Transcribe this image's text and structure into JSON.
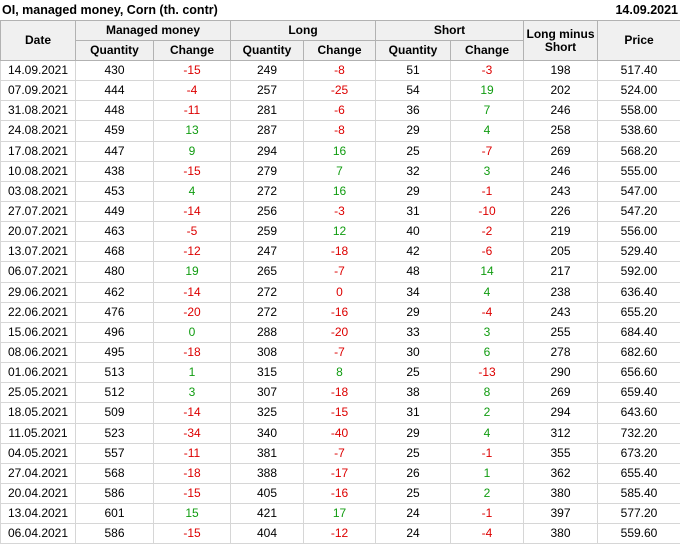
{
  "header": {
    "title": "OI, managed money, Corn (th. contr)",
    "report_date": "14.09.2021"
  },
  "colors": {
    "red": "#dd0000",
    "green": "#119c11",
    "header_bg": "#f0f0f0",
    "header_border": "#b2b2b2",
    "body_border": "#d6d6d6",
    "text": "#000000"
  },
  "table": {
    "group_headers": {
      "date": "Date",
      "managed_money": "Managed money",
      "long": "Long",
      "short": "Short",
      "long_minus_short": "Long minus Short",
      "price": "Price"
    },
    "sub_headers": {
      "quantity": "Quantity",
      "change": "Change"
    }
  },
  "chart_data": {
    "type": "table",
    "title": "OI, managed money, Corn (th. contr)",
    "as_of_date": "14.09.2021",
    "column_groups": [
      "Date",
      "Managed money",
      "Long",
      "Short",
      "Long minus Short",
      "Price"
    ],
    "columns": [
      "Date",
      "Managed money Quantity",
      "Managed money Change",
      "Long Quantity",
      "Long Change",
      "Short Quantity",
      "Short Change",
      "Long minus Short",
      "Price"
    ],
    "rows": [
      [
        "14.09.2021",
        "430",
        "-15",
        "249",
        "-8",
        "51",
        "-3",
        "198",
        "517.40"
      ],
      [
        "07.09.2021",
        "444",
        "-4",
        "257",
        "-25",
        "54",
        "19",
        "202",
        "524.00"
      ],
      [
        "31.08.2021",
        "448",
        "-11",
        "281",
        "-6",
        "36",
        "7",
        "246",
        "558.00"
      ],
      [
        "24.08.2021",
        "459",
        "13",
        "287",
        "-8",
        "29",
        "4",
        "258",
        "538.60"
      ],
      [
        "17.08.2021",
        "447",
        "9",
        "294",
        "16",
        "25",
        "-7",
        "269",
        "568.20"
      ],
      [
        "10.08.2021",
        "438",
        "-15",
        "279",
        "7",
        "32",
        "3",
        "246",
        "555.00"
      ],
      [
        "03.08.2021",
        "453",
        "4",
        "272",
        "16",
        "29",
        "-1",
        "243",
        "547.00"
      ],
      [
        "27.07.2021",
        "449",
        "-14",
        "256",
        "-3",
        "31",
        "-10",
        "226",
        "547.20"
      ],
      [
        "20.07.2021",
        "463",
        "-5",
        "259",
        "12",
        "40",
        "-2",
        "219",
        "556.00"
      ],
      [
        "13.07.2021",
        "468",
        "-12",
        "247",
        "-18",
        "42",
        "-6",
        "205",
        "529.40"
      ],
      [
        "06.07.2021",
        "480",
        "19",
        "265",
        "-7",
        "48",
        "14",
        "217",
        "592.00"
      ],
      [
        "29.06.2021",
        "462",
        "-14",
        "272",
        "0",
        "34",
        "4",
        "238",
        "636.40"
      ],
      [
        "22.06.2021",
        "476",
        "-20",
        "272",
        "-16",
        "29",
        "-4",
        "243",
        "655.20"
      ],
      [
        "15.06.2021",
        "496",
        "0",
        "288",
        "-20",
        "33",
        "3",
        "255",
        "684.40"
      ],
      [
        "08.06.2021",
        "495",
        "-18",
        "308",
        "-7",
        "30",
        "6",
        "278",
        "682.60"
      ],
      [
        "01.06.2021",
        "513",
        "1",
        "315",
        "8",
        "25",
        "-13",
        "290",
        "656.60"
      ],
      [
        "25.05.2021",
        "512",
        "3",
        "307",
        "-18",
        "38",
        "8",
        "269",
        "659.40"
      ],
      [
        "18.05.2021",
        "509",
        "-14",
        "325",
        "-15",
        "31",
        "2",
        "294",
        "643.60"
      ],
      [
        "11.05.2021",
        "523",
        "-34",
        "340",
        "-40",
        "29",
        "4",
        "312",
        "732.20"
      ],
      [
        "04.05.2021",
        "557",
        "-11",
        "381",
        "-7",
        "25",
        "-1",
        "355",
        "673.20"
      ],
      [
        "27.04.2021",
        "568",
        "-18",
        "388",
        "-17",
        "26",
        "1",
        "362",
        "655.40"
      ],
      [
        "20.04.2021",
        "586",
        "-15",
        "405",
        "-16",
        "25",
        "2",
        "380",
        "585.40"
      ],
      [
        "13.04.2021",
        "601",
        "15",
        "421",
        "17",
        "24",
        "-1",
        "397",
        "577.20"
      ],
      [
        "06.04.2021",
        "586",
        "-15",
        "404",
        "-12",
        "24",
        "-4",
        "380",
        "559.60"
      ]
    ],
    "change_colors": [
      [
        "red",
        "red",
        "red"
      ],
      [
        "red",
        "red",
        "green"
      ],
      [
        "red",
        "red",
        "green"
      ],
      [
        "green",
        "red",
        "green"
      ],
      [
        "green",
        "green",
        "red"
      ],
      [
        "red",
        "green",
        "green"
      ],
      [
        "green",
        "green",
        "red"
      ],
      [
        "red",
        "red",
        "red"
      ],
      [
        "red",
        "green",
        "red"
      ],
      [
        "red",
        "red",
        "red"
      ],
      [
        "green",
        "red",
        "green"
      ],
      [
        "red",
        "red",
        "green"
      ],
      [
        "red",
        "red",
        "red"
      ],
      [
        "green",
        "red",
        "green"
      ],
      [
        "red",
        "red",
        "green"
      ],
      [
        "green",
        "green",
        "red"
      ],
      [
        "green",
        "red",
        "green"
      ],
      [
        "red",
        "red",
        "green"
      ],
      [
        "red",
        "red",
        "green"
      ],
      [
        "red",
        "red",
        "red"
      ],
      [
        "red",
        "red",
        "green"
      ],
      [
        "red",
        "red",
        "green"
      ],
      [
        "green",
        "green",
        "red"
      ],
      [
        "red",
        "red",
        "red"
      ]
    ]
  }
}
